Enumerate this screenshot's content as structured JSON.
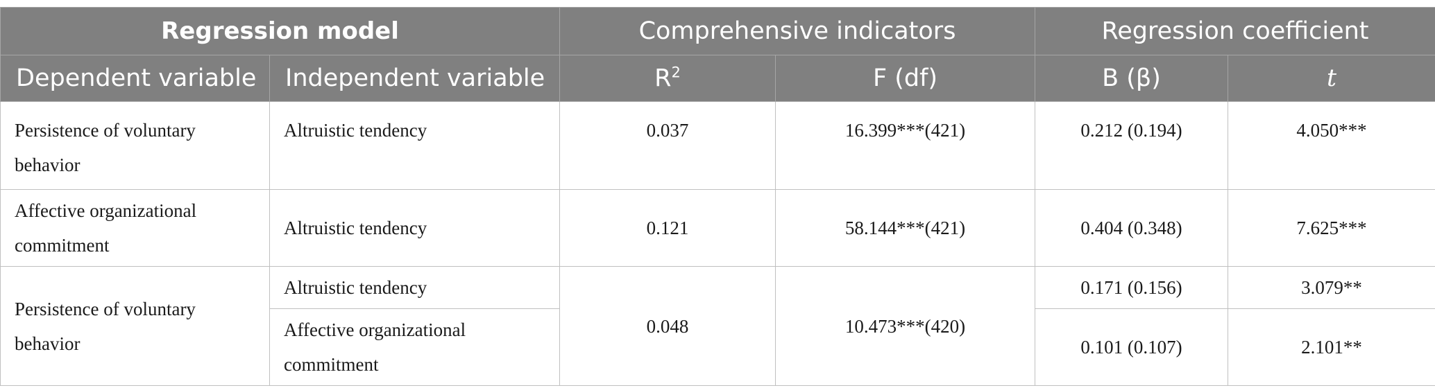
{
  "table": {
    "group_headers": {
      "regression_model": "Regression model",
      "comprehensive_indicators": "Comprehensive indicators",
      "regression_coefficient": "Regression coefficient"
    },
    "column_headers": {
      "dependent": "Dependent variable",
      "independent": "Independent variable",
      "r2_base": "R",
      "r2_sup": "2",
      "f_df": "F (df)",
      "b_beta": "B (β)",
      "t": "t"
    },
    "rows": [
      {
        "dependent": "Persistence of voluntary\nbehavior",
        "independent": "Altruistic tendency",
        "r2": "0.037",
        "f_df": "16.399***(421)",
        "b_beta": "0.212 (0.194)",
        "t": "4.050***"
      },
      {
        "dependent": "Affective organizational\ncommitment",
        "independent": "Altruistic tendency",
        "r2": "0.121",
        "f_df": "58.144***(421)",
        "b_beta": "0.404 (0.348)",
        "t": "7.625***"
      },
      {
        "dependent": "Persistence of voluntary\nbehavior",
        "r2": "0.048",
        "f_df": "10.473***(420)",
        "sub": [
          {
            "independent": "Altruistic tendency",
            "b_beta": "0.171 (0.156)",
            "t": "3.079**"
          },
          {
            "independent": "Affective organizational\ncommitment",
            "b_beta": "0.101 (0.107)",
            "t": "2.101**"
          }
        ]
      }
    ]
  }
}
